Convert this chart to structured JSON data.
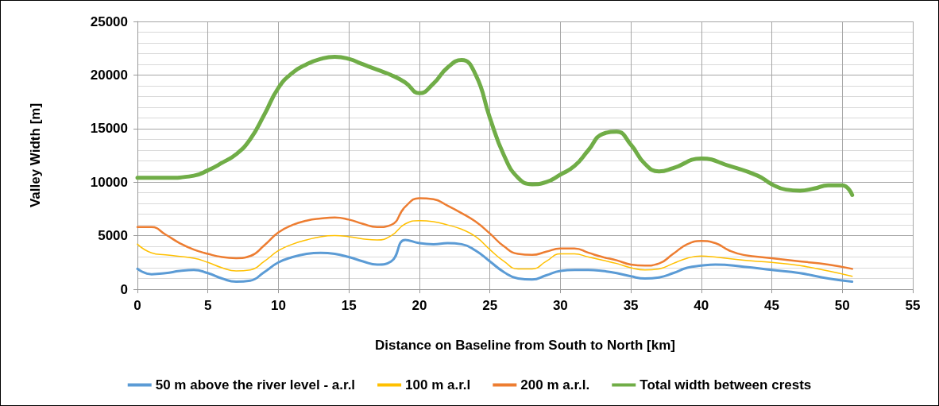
{
  "chart_data": {
    "type": "line",
    "xlabel": "Distance on Baseline from South to North [km]",
    "ylabel": "Valley Width [m]",
    "xlim": [
      0,
      55
    ],
    "xticks": [
      0,
      5,
      10,
      15,
      20,
      25,
      30,
      35,
      40,
      45,
      50,
      55
    ],
    "ylim": [
      0,
      25000
    ],
    "yticks": [
      0,
      5000,
      10000,
      15000,
      20000,
      25000
    ],
    "grid": true,
    "legend": "bottom",
    "marker": "none",
    "line_style": "solid",
    "series": [
      {
        "name": "50 m above the river level - a.r.l",
        "color": "#5b9bd5",
        "x": [
          0,
          1,
          2,
          3,
          4,
          5,
          6,
          7,
          8,
          9,
          10,
          11,
          12,
          13,
          14,
          15,
          16,
          17,
          18,
          19,
          20,
          21,
          22,
          23,
          24,
          25,
          26,
          27,
          28,
          29,
          30,
          31,
          32,
          33,
          34,
          35,
          36,
          37,
          38,
          39,
          40,
          41,
          43,
          45,
          47,
          49,
          50.7
        ],
        "values": [
          1900,
          1400,
          1500,
          1700,
          1800,
          1500,
          1000,
          700,
          800,
          1600,
          2500,
          3000,
          3300,
          3400,
          3300,
          3000,
          2600,
          2300,
          2600,
          4600,
          4300,
          4200,
          4300,
          4200,
          3600,
          2600,
          1600,
          1000,
          900,
          1300,
          1700,
          1800,
          1800,
          1700,
          1500,
          1200,
          1000,
          1100,
          1500,
          2000,
          2200,
          2300,
          2100,
          1800,
          1500,
          1000,
          700
        ]
      },
      {
        "name": "100 m a.r.l",
        "color": "#ffc000",
        "x": [
          0,
          1,
          2,
          4,
          5,
          6,
          7,
          8,
          9,
          10,
          11,
          12,
          13,
          14,
          15,
          16,
          17,
          18,
          19,
          20,
          21,
          22,
          23,
          24,
          25,
          26,
          27,
          28,
          29,
          30,
          31,
          32,
          33,
          34,
          35,
          36,
          37,
          38,
          39,
          40,
          41,
          43,
          45,
          47,
          49,
          50.7
        ],
        "values": [
          4200,
          3400,
          3200,
          2900,
          2500,
          2000,
          1700,
          1800,
          2600,
          3600,
          4200,
          4600,
          4900,
          5000,
          4900,
          4700,
          4600,
          5000,
          6100,
          6400,
          6300,
          6000,
          5600,
          4900,
          3700,
          2600,
          1900,
          1900,
          2600,
          3300,
          3300,
          3000,
          2700,
          2400,
          2000,
          1800,
          1900,
          2400,
          2900,
          3100,
          3000,
          2700,
          2500,
          2200,
          1700,
          1200
        ]
      },
      {
        "name": "200 m a.r.l.",
        "color": "#ed7d31",
        "x": [
          0,
          1,
          2,
          3,
          4,
          5,
          6,
          7,
          8,
          9,
          10,
          11,
          12,
          13,
          14,
          15,
          16,
          17,
          18,
          19,
          20,
          21,
          22,
          23,
          24,
          25,
          26,
          27,
          28,
          29,
          30,
          31,
          32,
          33,
          34,
          35,
          36,
          37,
          38,
          39,
          40,
          41,
          42,
          43,
          45,
          47,
          49,
          50.7
        ],
        "values": [
          5800,
          5800,
          5100,
          4300,
          3700,
          3300,
          3000,
          2900,
          3100,
          4100,
          5300,
          6000,
          6400,
          6600,
          6700,
          6500,
          6100,
          5800,
          6000,
          7700,
          8500,
          8400,
          7800,
          7100,
          6300,
          5200,
          4000,
          3300,
          3200,
          3500,
          3800,
          3800,
          3400,
          3000,
          2700,
          2300,
          2200,
          2400,
          3300,
          4200,
          4500,
          4300,
          3600,
          3200,
          2900,
          2600,
          2300,
          1900
        ]
      },
      {
        "name": "Total width between crests",
        "color": "#70ad47",
        "x": [
          0,
          2,
          4,
          5,
          6,
          7,
          8,
          9,
          10,
          11,
          12,
          13,
          14,
          15,
          16,
          17,
          18,
          19,
          20,
          21,
          22,
          23,
          24,
          25,
          26,
          27,
          28,
          29,
          30,
          31,
          32,
          33,
          34,
          35,
          36,
          37,
          38,
          40,
          42,
          44,
          45,
          46,
          47,
          48,
          49,
          50,
          50.7
        ],
        "values": [
          10400,
          10400,
          10600,
          11100,
          11800,
          12600,
          14000,
          16300,
          18800,
          20200,
          21000,
          21500,
          21700,
          21500,
          21000,
          20500,
          20000,
          19300,
          18300,
          19200,
          20700,
          21400,
          20000,
          16000,
          12500,
          10400,
          9800,
          10000,
          10700,
          11500,
          13000,
          14500,
          14700,
          13500,
          11700,
          11000,
          11300,
          12200,
          11500,
          10600,
          9800,
          9300,
          9200,
          9400,
          9700,
          9700,
          8800
        ]
      }
    ]
  }
}
